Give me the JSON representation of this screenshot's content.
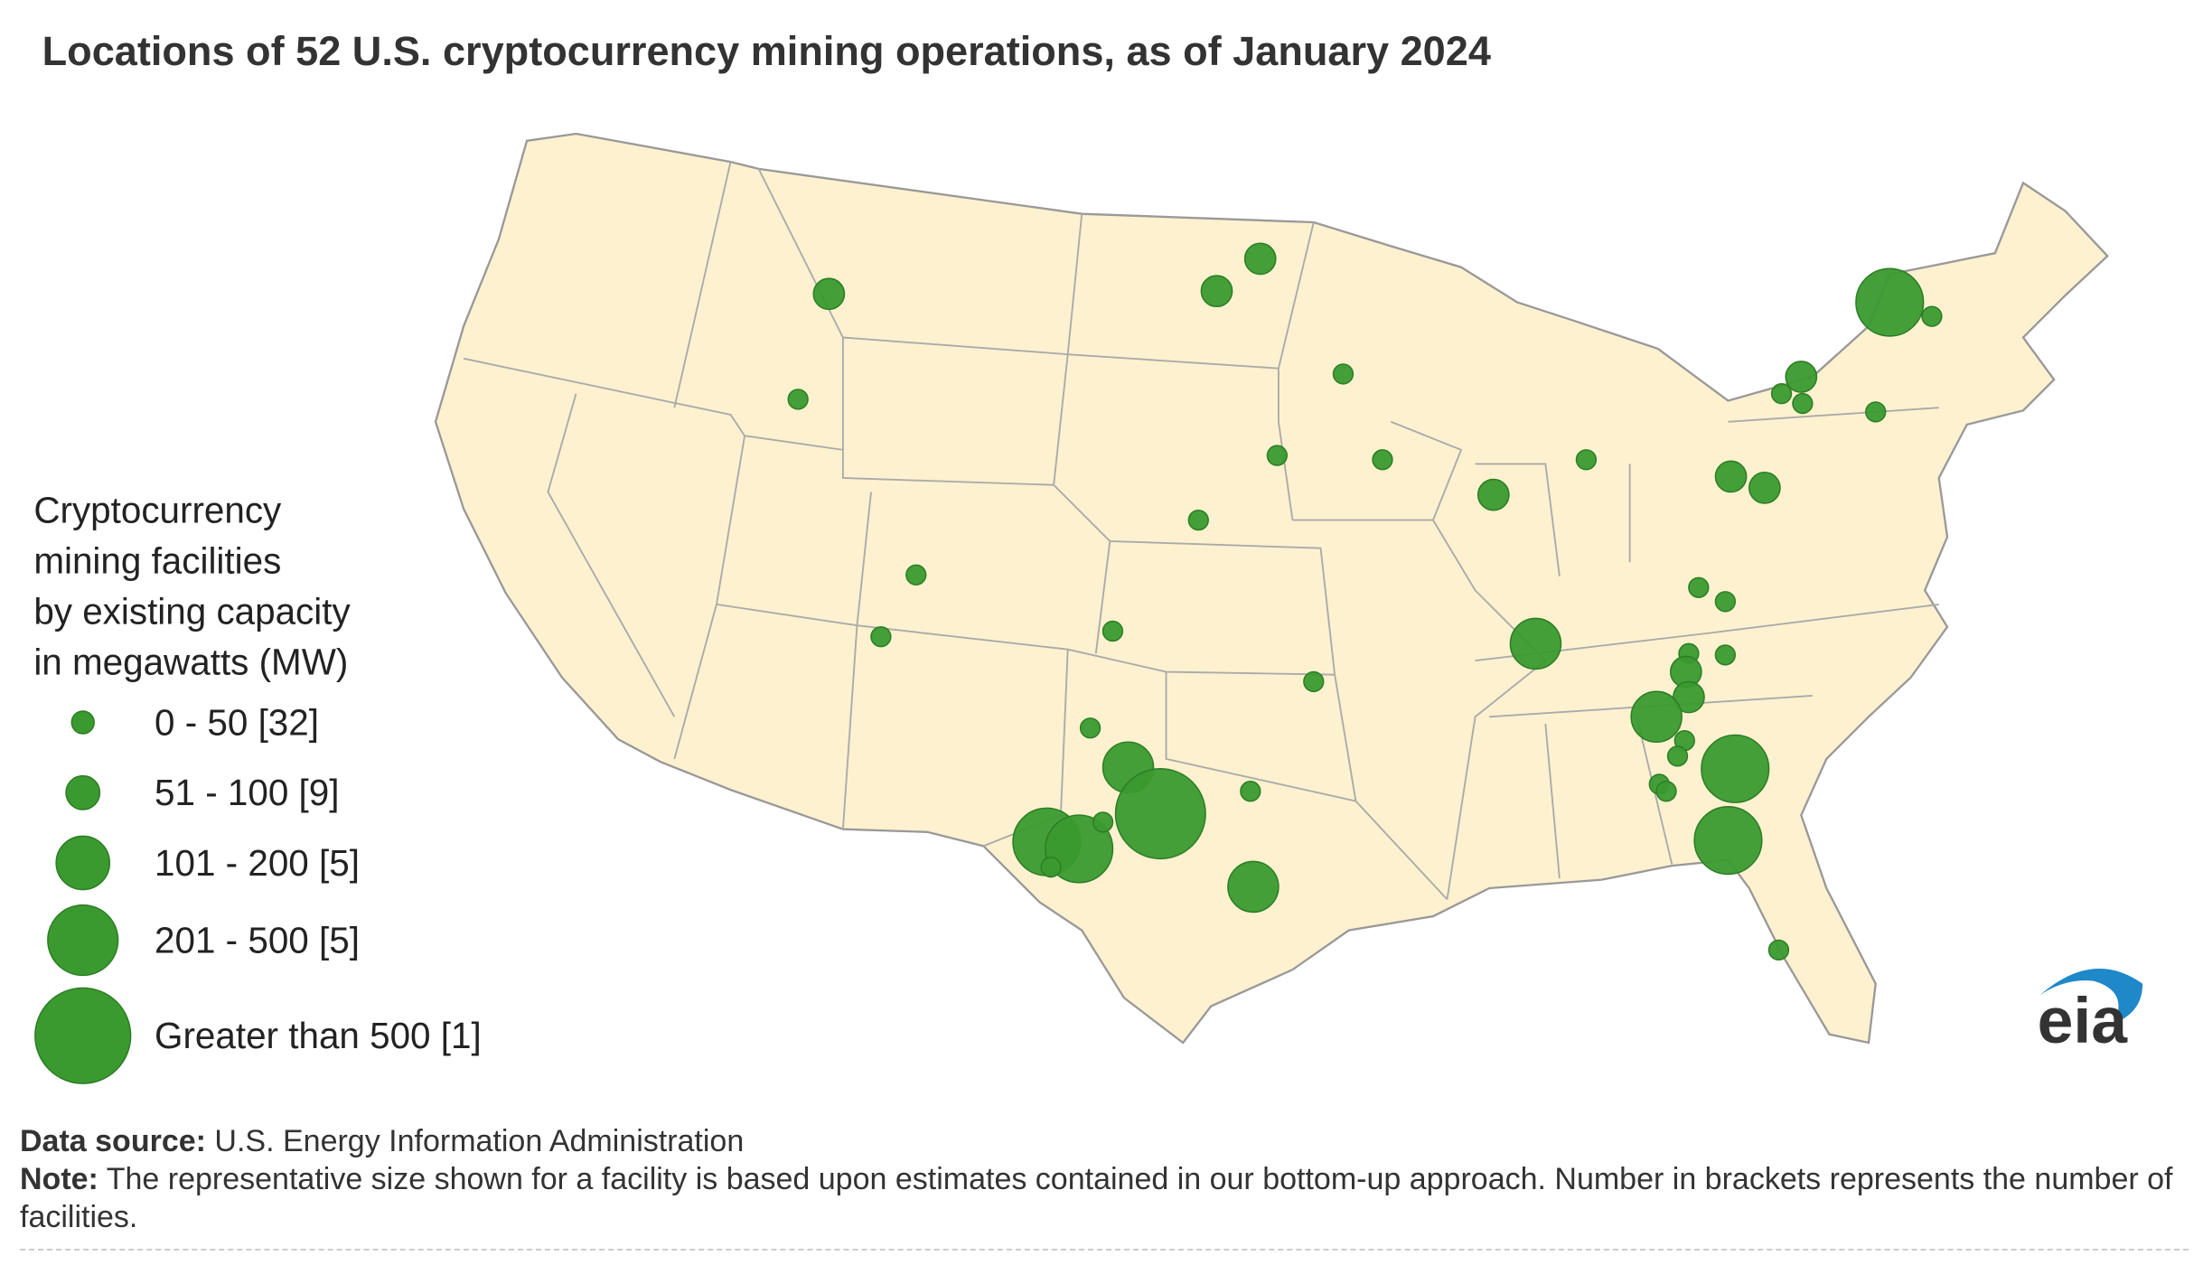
{
  "title": "Locations of 52 U.S. cryptocurrency mining operations, as of January 2024",
  "legend": {
    "title_lines": [
      "Cryptocurrency",
      "mining facilities",
      "by existing capacity",
      "in megawatts (MW)"
    ],
    "entries": [
      "0 - 50 [32]",
      "51 - 100 [9]",
      "101 - 200 [5]",
      "201 - 500 [5]",
      "Greater than 500 [1]"
    ]
  },
  "logo": "eia",
  "footer": {
    "source_label": "Data source:",
    "source": "U.S. Energy Information Administration",
    "note_label": "Note:",
    "note": "The representative size shown for a facility is based upon estimates contained in our bottom-up approach. Number in brackets represents the number of facilities."
  }
}
